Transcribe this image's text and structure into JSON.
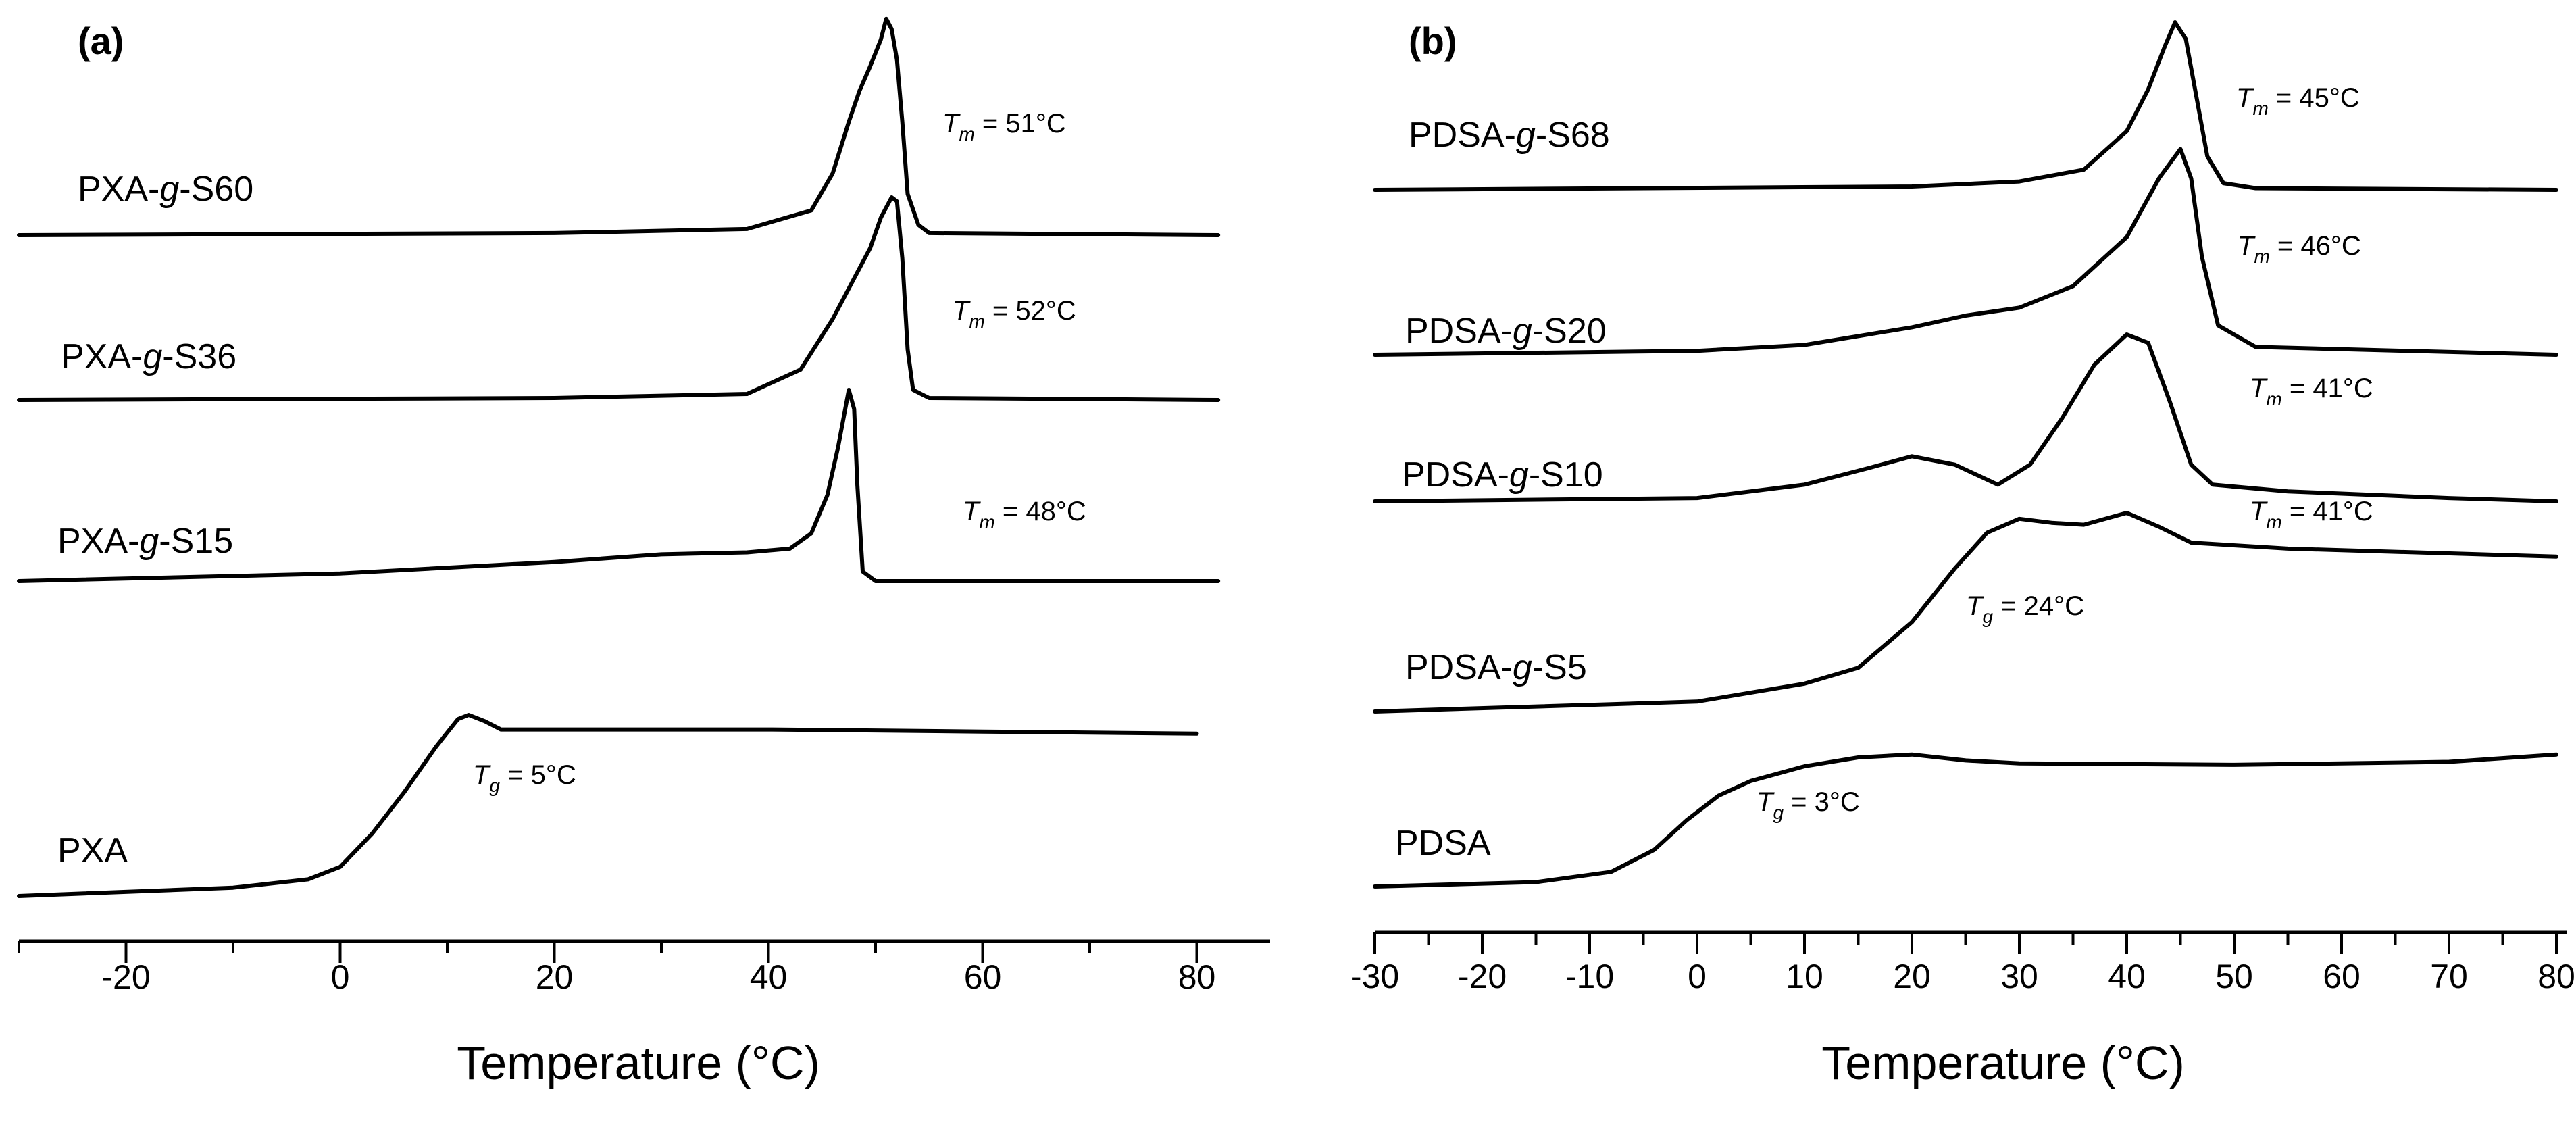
{
  "chart_data": [
    {
      "type": "line",
      "panel": "(a)",
      "xlabel": "Temperature (°C)",
      "ylabel": "",
      "xlim": [
        -30,
        82
      ],
      "xticks": [
        -20,
        0,
        20,
        40,
        60,
        80
      ],
      "xtick_labels": [
        "-20",
        "0",
        "20",
        "40",
        "60",
        "80"
      ],
      "grid": false,
      "series": [
        {
          "name": "PXA-g-S60",
          "prefix": "PXA-",
          "italic": "g",
          "suffix": "-S60",
          "points": [
            [
              -30,
              0
            ],
            [
              20,
              0.01
            ],
            [
              38,
              0.03
            ],
            [
              44,
              0.12
            ],
            [
              46,
              0.3
            ],
            [
              47.5,
              0.55
            ],
            [
              48.5,
              0.7
            ],
            [
              49.5,
              0.82
            ],
            [
              50.5,
              0.95
            ],
            [
              51,
              1.05
            ],
            [
              51.5,
              1.0
            ],
            [
              52,
              0.85
            ],
            [
              52.5,
              0.55
            ],
            [
              53,
              0.2
            ],
            [
              54,
              0.05
            ],
            [
              55,
              0.01
            ],
            [
              82,
              0
            ]
          ],
          "annotation": {
            "sym": "T",
            "sub": "m",
            "rest": " = 51°C"
          }
        },
        {
          "name": "PXA-g-S36",
          "prefix": "PXA-",
          "italic": "g",
          "suffix": "-S36",
          "points": [
            [
              -30,
              0
            ],
            [
              20,
              0.01
            ],
            [
              38,
              0.03
            ],
            [
              43,
              0.15
            ],
            [
              46,
              0.4
            ],
            [
              48,
              0.6
            ],
            [
              49.5,
              0.75
            ],
            [
              50.5,
              0.9
            ],
            [
              51.5,
              1.0
            ],
            [
              52,
              0.98
            ],
            [
              52.5,
              0.7
            ],
            [
              53,
              0.25
            ],
            [
              53.5,
              0.05
            ],
            [
              55,
              0.01
            ],
            [
              82,
              0
            ]
          ],
          "annotation": {
            "sym": "T",
            "sub": "m",
            "rest": " = 52°C"
          }
        },
        {
          "name": "PXA-g-S15",
          "prefix": "PXA-",
          "italic": "g",
          "suffix": "-S15",
          "points": [
            [
              -30,
              0
            ],
            [
              0,
              0.04
            ],
            [
              20,
              0.1
            ],
            [
              30,
              0.14
            ],
            [
              38,
              0.15
            ],
            [
              42,
              0.17
            ],
            [
              44,
              0.25
            ],
            [
              45.5,
              0.45
            ],
            [
              46.5,
              0.7
            ],
            [
              47.5,
              1.0
            ],
            [
              48,
              0.9
            ],
            [
              48.3,
              0.5
            ],
            [
              48.8,
              0.05
            ],
            [
              50,
              0
            ],
            [
              82,
              0
            ]
          ],
          "annotation": {
            "sym": "T",
            "sub": "m",
            "rest": " = 48°C"
          }
        },
        {
          "name": "PXA",
          "prefix": "PXA",
          "italic": "",
          "suffix": "",
          "points": [
            [
              -30,
              0
            ],
            [
              -10,
              0.04
            ],
            [
              -3,
              0.08
            ],
            [
              0,
              0.14
            ],
            [
              3,
              0.3
            ],
            [
              6,
              0.5
            ],
            [
              9,
              0.72
            ],
            [
              11,
              0.85
            ],
            [
              12,
              0.87
            ],
            [
              13.5,
              0.84
            ],
            [
              15,
              0.8
            ],
            [
              20,
              0.8
            ],
            [
              40,
              0.8
            ],
            [
              60,
              0.79
            ],
            [
              80,
              0.78
            ]
          ],
          "annotation": {
            "sym": "T",
            "sub": "g",
            "rest": " = 5°C"
          }
        }
      ]
    },
    {
      "type": "line",
      "panel": "(b)",
      "xlabel": "Temperature (°C)",
      "ylabel": "",
      "xlim": [
        -30,
        80
      ],
      "xticks": [
        -30,
        -20,
        -10,
        0,
        10,
        20,
        30,
        40,
        50,
        60,
        70,
        80
      ],
      "xtick_labels": [
        "-30",
        "-20",
        "-10",
        "0",
        "10",
        "20",
        "30",
        "40",
        "50",
        "60",
        "70",
        "80"
      ],
      "grid": false,
      "series": [
        {
          "name": "PDSA-g-S68",
          "prefix": "PDSA-",
          "italic": "g",
          "suffix": "-S68",
          "points": [
            [
              -30,
              0
            ],
            [
              20,
              0.02
            ],
            [
              30,
              0.05
            ],
            [
              36,
              0.12
            ],
            [
              40,
              0.35
            ],
            [
              42,
              0.6
            ],
            [
              43.5,
              0.85
            ],
            [
              44.5,
              1.0
            ],
            [
              45.5,
              0.9
            ],
            [
              46.5,
              0.55
            ],
            [
              47.5,
              0.2
            ],
            [
              49,
              0.04
            ],
            [
              52,
              0.01
            ],
            [
              80,
              0
            ]
          ],
          "annotation": {
            "sym": "T",
            "sub": "m",
            "rest": " = 45°C"
          }
        },
        {
          "name": "PDSA-g-S20",
          "prefix": "PDSA-",
          "italic": "g",
          "suffix": "-S20",
          "points": [
            [
              -30,
              0
            ],
            [
              0,
              0.02
            ],
            [
              10,
              0.05
            ],
            [
              20,
              0.14
            ],
            [
              25,
              0.2
            ],
            [
              30,
              0.24
            ],
            [
              35,
              0.35
            ],
            [
              40,
              0.6
            ],
            [
              43,
              0.9
            ],
            [
              45,
              1.05
            ],
            [
              46,
              0.9
            ],
            [
              47,
              0.5
            ],
            [
              48.5,
              0.15
            ],
            [
              52,
              0.04
            ],
            [
              80,
              0
            ]
          ],
          "annotation": {
            "sym": "T",
            "sub": "m",
            "rest": " = 46°C"
          }
        },
        {
          "name": "PDSA-g-S10",
          "prefix": "PDSA-",
          "italic": "g",
          "suffix": "-S10",
          "points": [
            [
              -30,
              0
            ],
            [
              0,
              0.02
            ],
            [
              10,
              0.1
            ],
            [
              16,
              0.2
            ],
            [
              20,
              0.27
            ],
            [
              24,
              0.22
            ],
            [
              28,
              0.1
            ],
            [
              31,
              0.22
            ],
            [
              34,
              0.5
            ],
            [
              37,
              0.82
            ],
            [
              40,
              1.0
            ],
            [
              42,
              0.95
            ],
            [
              44,
              0.6
            ],
            [
              46,
              0.22
            ],
            [
              48,
              0.1
            ],
            [
              55,
              0.06
            ],
            [
              70,
              0.02
            ],
            [
              80,
              0
            ]
          ],
          "annotation": {
            "sym": "T",
            "sub": "m",
            "rest": " = 41°C"
          }
        },
        {
          "name": "PDSA-g-S5",
          "prefix": "PDSA-",
          "italic": "g",
          "suffix": "-S5",
          "points": [
            [
              -30,
              0
            ],
            [
              0,
              0.05
            ],
            [
              10,
              0.14
            ],
            [
              15,
              0.22
            ],
            [
              20,
              0.45
            ],
            [
              24,
              0.72
            ],
            [
              27,
              0.9
            ],
            [
              30,
              0.97
            ],
            [
              33,
              0.95
            ],
            [
              36,
              0.94
            ],
            [
              40,
              1.0
            ],
            [
              43,
              0.93
            ],
            [
              46,
              0.85
            ],
            [
              55,
              0.82
            ],
            [
              80,
              0.78
            ]
          ],
          "annotation": {
            "sym": "T",
            "sub": "g",
            "rest": " = 24°C"
          },
          "annotation2": {
            "sym": "T",
            "sub": "m",
            "rest": " = 41°C"
          }
        },
        {
          "name": "PDSA",
          "prefix": "PDSA",
          "italic": "",
          "suffix": "",
          "points": [
            [
              -30,
              0
            ],
            [
              -15,
              0.03
            ],
            [
              -8,
              0.1
            ],
            [
              -4,
              0.25
            ],
            [
              -1,
              0.45
            ],
            [
              2,
              0.62
            ],
            [
              5,
              0.72
            ],
            [
              10,
              0.82
            ],
            [
              15,
              0.88
            ],
            [
              20,
              0.9
            ],
            [
              25,
              0.86
            ],
            [
              30,
              0.84
            ],
            [
              50,
              0.83
            ],
            [
              70,
              0.85
            ],
            [
              80,
              0.9
            ]
          ],
          "annotation": {
            "sym": "T",
            "sub": "g",
            "rest": " = 3°C"
          }
        }
      ]
    }
  ]
}
